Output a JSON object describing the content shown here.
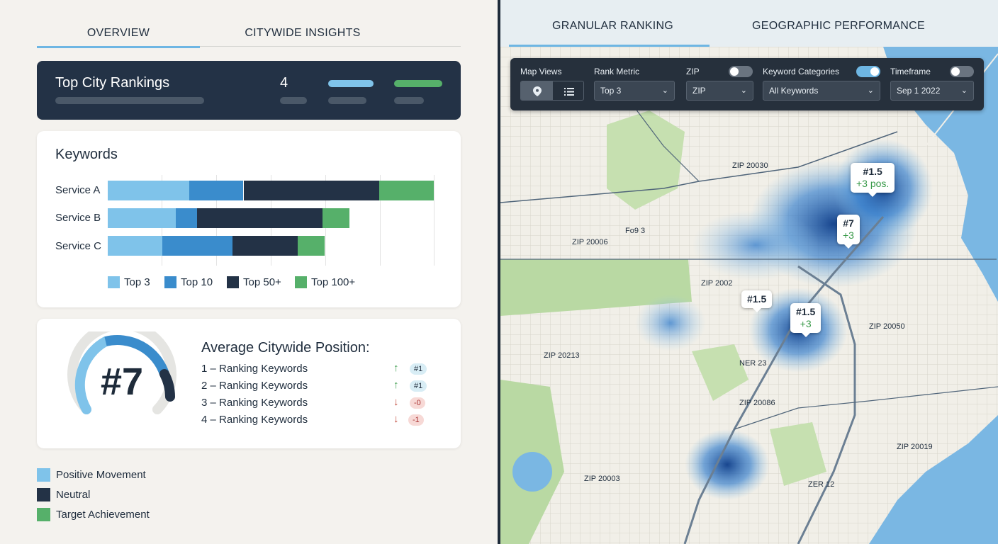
{
  "left": {
    "tabs": [
      "OVERVIEW",
      "CITYWIDE INSIGHTS"
    ],
    "active_tab": "OVERVIEW",
    "top_rankings": {
      "title": "Top City Rankings",
      "value": "4"
    },
    "keywords": {
      "title": "Keywords",
      "rows": [
        {
          "label": "Service A",
          "segments": [
            30,
            20,
            50,
            20
          ]
        },
        {
          "label": "Service B",
          "segments": [
            25,
            8,
            46,
            10
          ]
        },
        {
          "label": "Service C",
          "segments": [
            20,
            26,
            24,
            10
          ]
        }
      ],
      "legend": [
        "Top 3",
        "Top 10",
        "Top 50+",
        "Top 100+"
      ],
      "colors": [
        "#7fc3ea",
        "#3a8ccc",
        "#233246",
        "#56b06a"
      ]
    },
    "position": {
      "gauge_value": "#7",
      "gauge_fraction": 0.62,
      "title": "Average Citywide Position:",
      "rows": [
        {
          "label": "1 – Ranking Keywords",
          "dir": "up",
          "badge": "#1"
        },
        {
          "label": "2 – Ranking Keywords",
          "dir": "up",
          "badge": "#1"
        },
        {
          "label": "3 – Ranking Keywords",
          "dir": "down",
          "badge": "-0"
        },
        {
          "label": "4 – Ranking Keywords",
          "dir": "down",
          "badge": "-1"
        }
      ]
    },
    "legend": [
      {
        "label": "Positive Movement",
        "color": "#7fc3ea"
      },
      {
        "label": "Neutral",
        "color": "#233246"
      },
      {
        "label": "Target Achievement",
        "color": "#56b06a"
      }
    ]
  },
  "right": {
    "tabs": [
      "GRANULAR RANKING",
      "GEOGRAPHIC PERFORMANCE"
    ],
    "active_tab": "GRANULAR RANKING",
    "filters": {
      "map_views_label": "Map Views",
      "rank_metric_label": "Rank Metric",
      "rank_metric_value": "Top 3",
      "zip_label": "ZIP",
      "zip_value": "ZIP",
      "zip_toggle": false,
      "kw_label": "Keyword Categories",
      "kw_value": "All Keywords",
      "kw_toggle": true,
      "timeframe_label": "Timeframe",
      "timeframe_value": "Sep 1 2022",
      "timeframe_toggle": false
    },
    "callouts": [
      {
        "rank": "#1.5",
        "delta": "+3 pos."
      },
      {
        "rank": "#7",
        "delta": "+3"
      },
      {
        "rank": "#1.5",
        "delta": ""
      },
      {
        "rank": "#1.5",
        "delta": "+3"
      }
    ],
    "zips": [
      "ZIP 20030",
      "Fo9 3",
      "ZIP 20006",
      "ZIP 2002",
      "ZIP 20050",
      "ZIP 20213",
      "NER 23",
      "ZIP 20086",
      "ZIP 20019",
      "ZIP 20003",
      "ZER 12"
    ],
    "colors": {
      "water": "#7ab7e3",
      "land": "#f1efe8",
      "park": "#b9d9a3",
      "heat": "#1d5fb3"
    }
  }
}
